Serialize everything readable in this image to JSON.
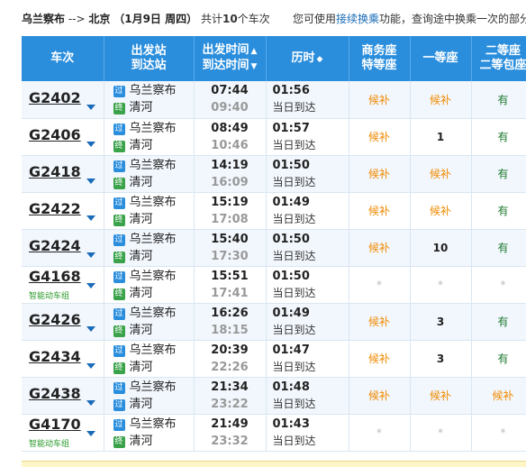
{
  "summary": {
    "from": "乌兰察布",
    "arrow": "-->",
    "to": "北京",
    "date": "（1月9日 周四）",
    "count_prefix": "共计",
    "count": "10",
    "count_suffix": "个车次",
    "notice_prefix": "您可使用",
    "notice_link": "接续换乘",
    "notice_suffix": "功能，查询途中换乘一次的部分"
  },
  "headers": {
    "train": "车次",
    "station_1": "出发站",
    "station_2": "到达站",
    "time_1": "出发时间",
    "time_2": "到达时间",
    "duration": "历时",
    "business_1": "商务座",
    "business_2": "特等座",
    "first": "一等座",
    "second_1": "二等座",
    "second_2": "二等包座"
  },
  "station_badges": {
    "pass": "过",
    "end": "终"
  },
  "smart_label": "智能动车组",
  "trains": [
    {
      "no": "G2402",
      "from": "乌兰察布",
      "to": "清河",
      "dep": "07:44",
      "arr": "09:40",
      "dur": "01:56",
      "arrive": "当日到达",
      "business": "候补",
      "first": "候补",
      "second": "有",
      "to_badge": "end",
      "smart": false
    },
    {
      "no": "G2406",
      "from": "乌兰察布",
      "to": "清河",
      "dep": "08:49",
      "arr": "10:46",
      "dur": "01:57",
      "arrive": "当日到达",
      "business": "候补",
      "first": "1",
      "second": "有",
      "to_badge": "end",
      "smart": false
    },
    {
      "no": "G2418",
      "from": "乌兰察布",
      "to": "清河",
      "dep": "14:19",
      "arr": "16:09",
      "dur": "01:50",
      "arrive": "当日到达",
      "business": "候补",
      "first": "候补",
      "second": "有",
      "to_badge": "end",
      "smart": false
    },
    {
      "no": "G2422",
      "from": "乌兰察布",
      "to": "清河",
      "dep": "15:19",
      "arr": "17:08",
      "dur": "01:49",
      "arrive": "当日到达",
      "business": "候补",
      "first": "候补",
      "second": "有",
      "to_badge": "end",
      "smart": false
    },
    {
      "no": "G2424",
      "from": "乌兰察布",
      "to": "清河",
      "dep": "15:40",
      "arr": "17:30",
      "dur": "01:50",
      "arrive": "当日到达",
      "business": "候补",
      "first": "10",
      "second": "有",
      "to_badge": "end",
      "smart": false
    },
    {
      "no": "G4168",
      "from": "乌兰察布",
      "to": "清河",
      "dep": "15:51",
      "arr": "17:41",
      "dur": "01:50",
      "arrive": "当日到达",
      "business": "*",
      "first": "*",
      "second": "*",
      "to_badge": "end",
      "smart": true
    },
    {
      "no": "G2426",
      "from": "乌兰察布",
      "to": "清河",
      "dep": "16:26",
      "arr": "18:15",
      "dur": "01:49",
      "arrive": "当日到达",
      "business": "候补",
      "first": "3",
      "second": "有",
      "to_badge": "end",
      "smart": false
    },
    {
      "no": "G2434",
      "from": "乌兰察布",
      "to": "清河",
      "dep": "20:39",
      "arr": "22:26",
      "dur": "01:47",
      "arrive": "当日到达",
      "business": "候补",
      "first": "3",
      "second": "有",
      "to_badge": "end",
      "smart": false
    },
    {
      "no": "G2438",
      "from": "乌兰察布",
      "to": "清河",
      "dep": "21:34",
      "arr": "23:22",
      "dur": "01:48",
      "arrive": "当日到达",
      "business": "候补",
      "first": "候补",
      "second": "候补",
      "to_badge": "pass",
      "smart": false
    },
    {
      "no": "G4170",
      "from": "乌兰察布",
      "to": "清河",
      "dep": "21:49",
      "arr": "23:32",
      "dur": "01:43",
      "arrive": "当日到达",
      "business": "*",
      "first": "*",
      "second": "*",
      "to_badge": "end",
      "smart": true
    }
  ],
  "colors": {
    "header_bg": "#2a8edd",
    "waitlist": "#f08a00",
    "available": "#1e7a2e",
    "link": "#1a6bb8"
  }
}
